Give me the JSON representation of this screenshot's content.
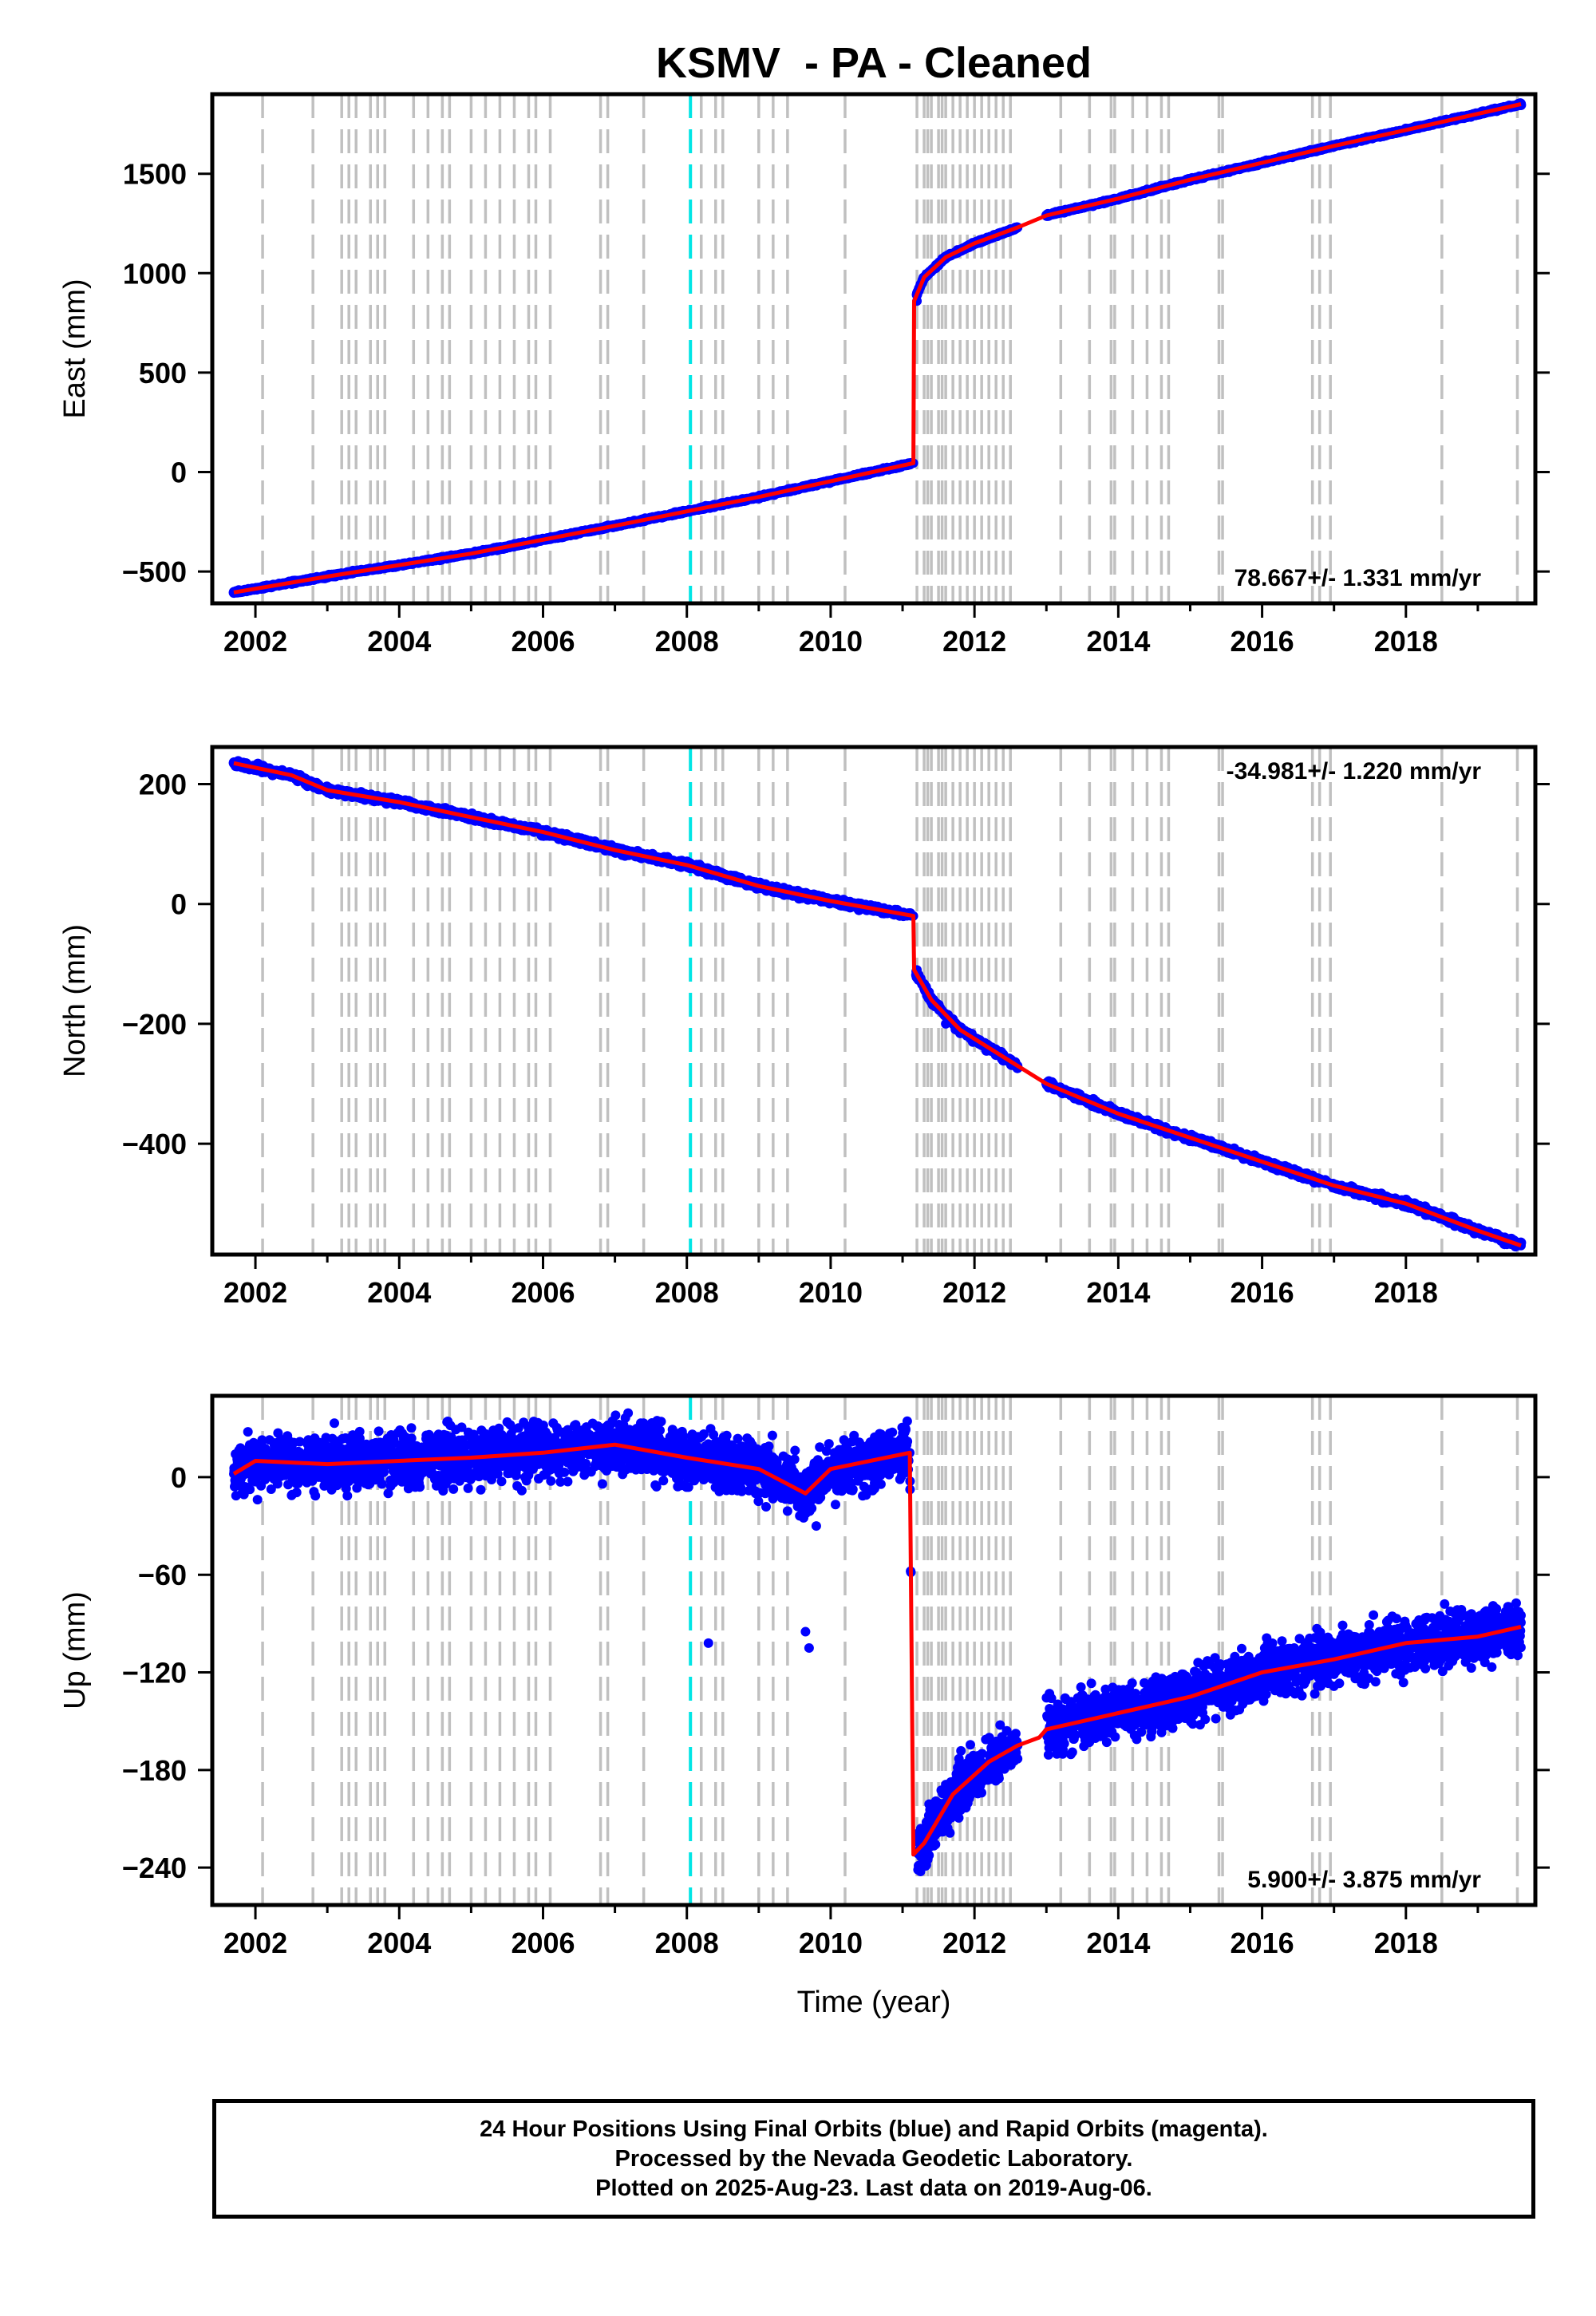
{
  "figure_title": "KSMV  - PA - Cleaned",
  "colors": {
    "final_orbits": "#0000ff",
    "model_fit": "#ff0000",
    "equipment_change": "#c0c0c0",
    "earthquake": "#00e5e5",
    "frame": "#000000"
  },
  "footer": {
    "line1": "24 Hour Positions Using Final Orbits (blue) and Rapid Orbits (magenta).",
    "line2": "Processed by the Nevada Geodetic Laboratory.",
    "line3": "Plotted on 2025-Aug-23. Last data on 2019-Aug-06."
  },
  "chart_data": [
    {
      "type": "scatter",
      "component": "east",
      "ylabel": "East (mm)",
      "xlabel": "",
      "xlim": [
        2001.4,
        2019.8
      ],
      "ylim": [
        -660,
        1900
      ],
      "xticks": [
        2002,
        2004,
        2006,
        2008,
        2010,
        2012,
        2014,
        2016,
        2018
      ],
      "yticks": [
        -500,
        0,
        500,
        1000,
        1500
      ],
      "rate_label": "78.667+/- 1.331 mm/yr",
      "rate_position": "bottom-right",
      "series": [
        {
          "name": "final orbits",
          "style": "points",
          "x": [
            2001.7,
            2003.0,
            2005.0,
            2007.0,
            2009.0,
            2011.15,
            2011.2,
            2011.6,
            2012.6,
            2014.0,
            2016.0,
            2018.0,
            2019.6
          ],
          "y": [
            -605,
            -525,
            -410,
            -270,
            -125,
            45,
            860,
            1080,
            1230,
            1375,
            1555,
            1720,
            1850
          ]
        },
        {
          "name": "model",
          "style": "line",
          "x": [
            2001.7,
            2003.0,
            2005.0,
            2007.0,
            2009.0,
            2011.15,
            2011.16,
            2011.3,
            2011.6,
            2012.0,
            2012.6,
            2013.0,
            2014.0,
            2015.0,
            2016.0,
            2017.0,
            2018.0,
            2019.6
          ],
          "y": [
            -605,
            -525,
            -410,
            -270,
            -125,
            45,
            860,
            980,
            1080,
            1150,
            1230,
            1290,
            1375,
            1470,
            1555,
            1640,
            1720,
            1850
          ]
        }
      ]
    },
    {
      "type": "scatter",
      "component": "north",
      "ylabel": "North (mm)",
      "xlabel": "",
      "xlim": [
        2001.4,
        2019.8
      ],
      "ylim": [
        -585,
        262
      ],
      "xticks": [
        2002,
        2004,
        2006,
        2008,
        2010,
        2012,
        2014,
        2016,
        2018
      ],
      "yticks": [
        -400,
        -200,
        0,
        200
      ],
      "rate_label": "-34.981+/- 1.220 mm/yr",
      "rate_position": "top-right",
      "series": [
        {
          "name": "final orbits",
          "style": "points",
          "x": [
            2001.7,
            2003.0,
            2005.0,
            2007.0,
            2009.0,
            2011.15,
            2011.2,
            2011.6,
            2012.6,
            2014.0,
            2016.0,
            2018.0,
            2019.6
          ],
          "y": [
            235,
            190,
            145,
            90,
            30,
            -20,
            -110,
            -200,
            -270,
            -350,
            -430,
            -500,
            -570
          ]
        },
        {
          "name": "model",
          "style": "line",
          "x": [
            2001.7,
            2002.5,
            2003.0,
            2004.0,
            2005.0,
            2006.0,
            2007.0,
            2008.0,
            2009.0,
            2010.0,
            2011.15,
            2011.16,
            2011.4,
            2011.8,
            2012.6,
            2013.0,
            2014.0,
            2015.0,
            2016.0,
            2017.0,
            2018.0,
            2019.0,
            2019.6
          ],
          "y": [
            235,
            215,
            190,
            170,
            145,
            120,
            90,
            65,
            30,
            5,
            -20,
            -110,
            -160,
            -210,
            -270,
            -300,
            -350,
            -390,
            -430,
            -470,
            -500,
            -545,
            -570
          ]
        }
      ]
    },
    {
      "type": "scatter",
      "component": "up",
      "ylabel": "Up (mm)",
      "xlabel": "Time (year)",
      "xlim": [
        2001.4,
        2019.8
      ],
      "ylim": [
        -263,
        50
      ],
      "xticks": [
        2002,
        2004,
        2006,
        2008,
        2010,
        2012,
        2014,
        2016,
        2018
      ],
      "yticks": [
        -240,
        -180,
        -120,
        -60,
        0
      ],
      "rate_label": "5.900+/- 3.875 mm/yr",
      "rate_position": "bottom-right",
      "series": [
        {
          "name": "final orbits",
          "style": "points",
          "x": [
            2001.7,
            2003.0,
            2005.0,
            2006.3,
            2008.0,
            2009.5,
            2011.1,
            2011.3,
            2012.0,
            2012.6,
            2013.2,
            2014.0,
            2015.0,
            2016.0,
            2017.0,
            2018.0,
            2019.0,
            2019.6,
            2008.3,
            2009.65,
            2009.7,
            2009.8
          ],
          "y": [
            2,
            8,
            12,
            20,
            10,
            0,
            15,
            -225,
            -190,
            -165,
            -155,
            -145,
            -135,
            -120,
            -110,
            -100,
            -95,
            -85,
            -102,
            -95,
            -105,
            -30
          ]
        },
        {
          "name": "model",
          "style": "line",
          "x": [
            2001.7,
            2002.0,
            2003.0,
            2004.0,
            2005.0,
            2006.0,
            2007.0,
            2008.0,
            2009.0,
            2009.65,
            2010.0,
            2011.1,
            2011.15,
            2011.3,
            2011.7,
            2012.2,
            2012.6,
            2012.9,
            2013.0,
            2014.0,
            2015.0,
            2016.0,
            2017.0,
            2018.0,
            2019.0,
            2019.6
          ],
          "y": [
            2,
            10,
            8,
            10,
            12,
            15,
            20,
            12,
            5,
            -10,
            5,
            15,
            -232,
            -225,
            -195,
            -175,
            -165,
            -160,
            -155,
            -145,
            -135,
            -120,
            -112,
            -102,
            -98,
            -92
          ]
        }
      ]
    }
  ]
}
